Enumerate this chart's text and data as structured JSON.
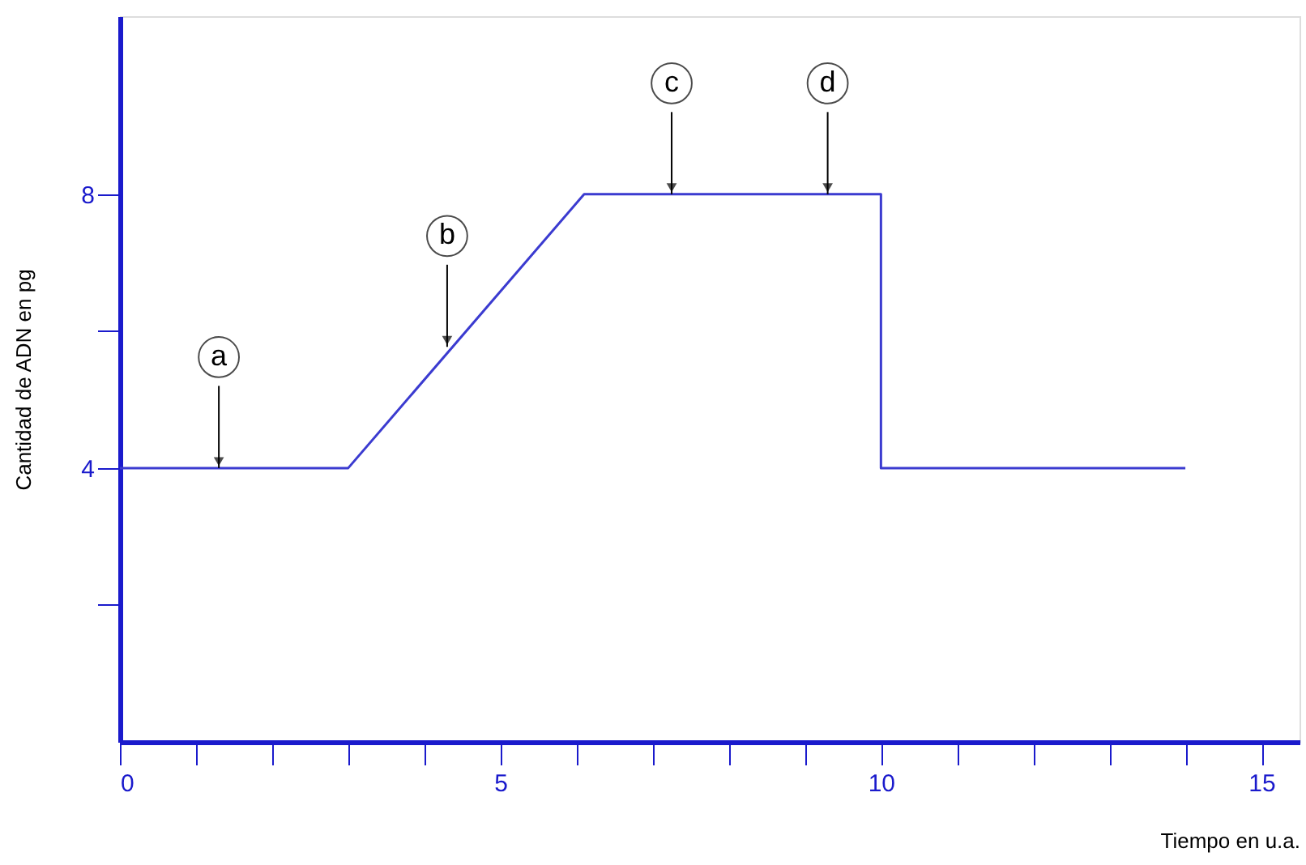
{
  "chart_data": {
    "type": "line",
    "xlabel": "Tiempo en u.a.",
    "ylabel": "Cantidad de ADN  en pg",
    "x": [
      0,
      3,
      6.1,
      10,
      10,
      14
    ],
    "series": [
      {
        "color": "#3b3bd0",
        "values": [
          4,
          4,
          8,
          8,
          4,
          4
        ]
      }
    ],
    "xlim": [
      0,
      15.5
    ],
    "ylim": [
      0,
      10.6
    ],
    "xticks": [
      0,
      {
        "value": 1,
        "label": null
      },
      {
        "value": 2,
        "label": null
      },
      {
        "value": 3,
        "label": null
      },
      {
        "value": 4,
        "label": null
      },
      5,
      {
        "value": 6,
        "label": null
      },
      {
        "value": 7,
        "label": null
      },
      {
        "value": 8,
        "label": null
      },
      {
        "value": 9,
        "label": null
      },
      10,
      {
        "value": 11,
        "label": null
      },
      {
        "value": 12,
        "label": null
      },
      {
        "value": 13,
        "label": null
      },
      {
        "value": 14,
        "label": null
      },
      15
    ],
    "yticks": [
      {
        "value": 2,
        "label": null
      },
      4,
      {
        "value": 6,
        "label": null
      },
      8
    ],
    "annotations": [
      {
        "text": "a",
        "x": 1.3,
        "y": 4
      },
      {
        "text": "b",
        "x": 4.3,
        "y": 5.77
      },
      {
        "text": "c",
        "x": 7.25,
        "y": 8
      },
      {
        "text": "d",
        "x": 9.3,
        "y": 8
      }
    ],
    "grid": false,
    "marker": "none",
    "line_style": "solid"
  }
}
